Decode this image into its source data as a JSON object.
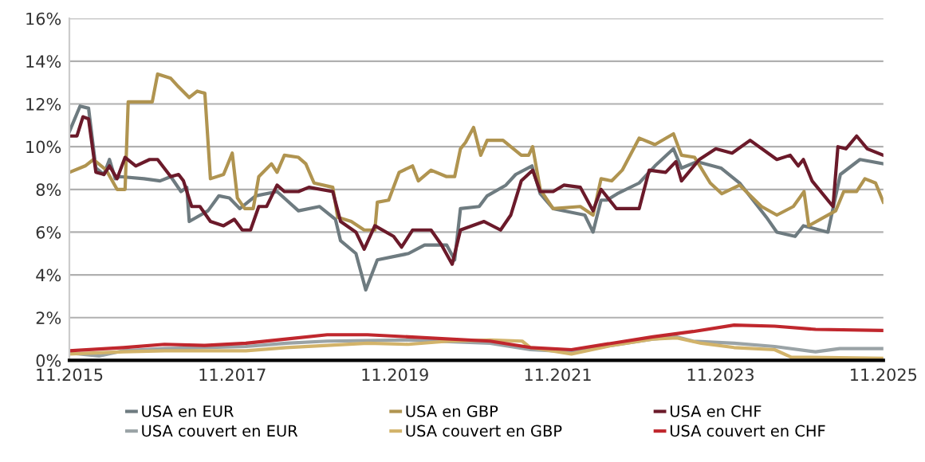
{
  "chart_data": {
    "type": "line",
    "xlim": [
      "2015-11-01",
      "2025-11-01"
    ],
    "xticks": [
      {
        "value": "2015-11-01",
        "label": "11.2015"
      },
      {
        "value": "2017-11-01",
        "label": "11.2017"
      },
      {
        "value": "2019-11-01",
        "label": "11.2019"
      },
      {
        "value": "2021-11-01",
        "label": "11.2021"
      },
      {
        "value": "2023-11-01",
        "label": "11.2023"
      },
      {
        "value": "2025-11-01",
        "label": "11.2025"
      }
    ],
    "ylim": [
      0,
      16
    ],
    "yticks": [
      {
        "value": 0,
        "label": "0%"
      },
      {
        "value": 2,
        "label": "2%"
      },
      {
        "value": 4,
        "label": "4%"
      },
      {
        "value": 6,
        "label": "6%"
      },
      {
        "value": 8,
        "label": "8%"
      },
      {
        "value": 10,
        "label": "10%"
      },
      {
        "value": 12,
        "label": "12%"
      },
      {
        "value": 14,
        "label": "14%"
      },
      {
        "value": 16,
        "label": "16%"
      }
    ],
    "grid": "y",
    "legend": "bottom",
    "marker": "none",
    "line_style": "solid",
    "series": [
      {
        "name": "USA en EUR",
        "color": "#6e7b80",
        "x": [
          "2015-11-01",
          "2015-12-19",
          "2016-01-26",
          "2016-02-28",
          "2016-04-04",
          "2016-04-29",
          "2016-05-25",
          "2016-06-16",
          "2016-10-01",
          "2016-12-12",
          "2017-01-29",
          "2017-03-16",
          "2017-04-11",
          "2017-04-22",
          "2017-07-15",
          "2017-09-02",
          "2017-10-19",
          "2017-12-05",
          "2018-02-14",
          "2018-05-21",
          "2018-08-25",
          "2018-11-28",
          "2019-02-07",
          "2019-03-02",
          "2019-05-10",
          "2019-06-23",
          "2019-08-14",
          "2020-01-01",
          "2020-03-13",
          "2020-06-20",
          "2020-07-26",
          "2020-08-21",
          "2020-11-13",
          "2020-12-19",
          "2021-03-13",
          "2021-04-26",
          "2021-07-08",
          "2021-08-14",
          "2021-10-11",
          "2022-03-02",
          "2022-04-08",
          "2022-05-14",
          "2022-06-09",
          "2022-07-26",
          "2022-11-01",
          "2023-01-11",
          "2023-04-04",
          "2023-05-10",
          "2023-07-19",
          "2023-11-03",
          "2024-01-26",
          "2024-05-25",
          "2024-07-11",
          "2024-10-01",
          "2024-11-07",
          "2025-02-25",
          "2025-04-22",
          "2025-07-19",
          "2025-11-01"
        ],
        "values": [
          10.7,
          11.9,
          11.8,
          9.0,
          8.7,
          9.4,
          8.5,
          8.6,
          8.5,
          8.4,
          8.6,
          7.9,
          8.1,
          6.5,
          7.0,
          7.7,
          7.6,
          7.1,
          7.7,
          7.9,
          7.0,
          7.2,
          6.6,
          5.6,
          5.0,
          3.3,
          4.7,
          5.0,
          5.4,
          5.4,
          4.7,
          7.1,
          7.2,
          7.7,
          8.2,
          8.7,
          9.1,
          7.8,
          7.1,
          6.8,
          6.0,
          7.5,
          7.5,
          7.8,
          8.3,
          9.1,
          9.9,
          9.0,
          9.3,
          9.0,
          8.3,
          6.7,
          6.0,
          5.8,
          6.3,
          6.0,
          8.7,
          9.4,
          9.2
        ]
      },
      {
        "name": "USA couvert en EUR",
        "color": "#9aa3a6",
        "x": [
          "2015-11-01",
          "2016-03-13",
          "2016-07-01",
          "2017-01-01",
          "2018-01-01",
          "2018-07-01",
          "2019-01-01",
          "2020-01-01",
          "2021-01-01",
          "2021-07-01",
          "2022-01-01",
          "2022-07-01",
          "2023-01-01",
          "2023-04-19",
          "2023-07-01",
          "2024-01-01",
          "2024-07-01",
          "2025-01-01",
          "2025-04-19",
          "2025-11-01"
        ],
        "values": [
          0.35,
          0.2,
          0.45,
          0.55,
          0.65,
          0.8,
          0.9,
          0.95,
          0.8,
          0.5,
          0.4,
          0.7,
          1.0,
          1.1,
          0.9,
          0.8,
          0.65,
          0.4,
          0.55,
          0.55
        ]
      },
      {
        "name": "USA en GBP",
        "color": "#b09450",
        "x": [
          "2015-11-01",
          "2016-01-11",
          "2016-02-17",
          "2016-04-15",
          "2016-06-02",
          "2016-07-08",
          "2016-07-22",
          "2016-11-07",
          "2016-12-01",
          "2017-01-29",
          "2017-03-05",
          "2017-04-22",
          "2017-05-28",
          "2017-07-01",
          "2017-07-26",
          "2017-09-23",
          "2017-11-01",
          "2017-11-24",
          "2017-12-27",
          "2018-02-03",
          "2018-02-28",
          "2018-04-26",
          "2018-05-21",
          "2018-06-23",
          "2018-08-25",
          "2018-09-27",
          "2018-11-03",
          "2019-01-26",
          "2019-02-17",
          "2019-04-19",
          "2019-06-16",
          "2019-08-03",
          "2019-08-14",
          "2019-10-04",
          "2019-11-20",
          "2020-01-19",
          "2020-02-14",
          "2020-04-11",
          "2020-06-20",
          "2020-07-26",
          "2020-08-21",
          "2020-09-13",
          "2020-10-19",
          "2020-11-20",
          "2020-12-19",
          "2021-02-28",
          "2021-05-21",
          "2021-06-23",
          "2021-07-11",
          "2021-08-14",
          "2021-10-11",
          "2022-02-10",
          "2022-04-08",
          "2022-05-14",
          "2022-07-01",
          "2022-08-17",
          "2022-11-01",
          "2023-01-11",
          "2023-04-04",
          "2023-05-10",
          "2023-07-08",
          "2023-09-16",
          "2023-11-07",
          "2024-01-26",
          "2024-05-03",
          "2024-07-11",
          "2024-09-23",
          "2024-11-10",
          "2024-12-01",
          "2025-04-01",
          "2025-05-07",
          "2025-07-04",
          "2025-08-10",
          "2025-09-27",
          "2025-11-01"
        ],
        "values": [
          8.8,
          9.1,
          9.4,
          8.9,
          8.0,
          8.0,
          12.1,
          12.1,
          13.4,
          13.2,
          12.8,
          12.3,
          12.6,
          12.5,
          8.5,
          8.7,
          9.7,
          7.6,
          7.1,
          7.1,
          8.6,
          9.2,
          8.8,
          9.6,
          9.5,
          9.2,
          8.3,
          8.1,
          6.7,
          6.5,
          6.1,
          6.1,
          7.4,
          7.5,
          8.8,
          9.1,
          8.4,
          8.9,
          8.6,
          8.6,
          9.9,
          10.2,
          10.9,
          9.6,
          10.3,
          10.3,
          9.6,
          9.6,
          10.0,
          8.0,
          7.1,
          7.2,
          6.8,
          8.5,
          8.4,
          8.9,
          10.4,
          10.1,
          10.6,
          9.6,
          9.5,
          8.3,
          7.8,
          8.2,
          7.2,
          6.8,
          7.2,
          7.9,
          6.3,
          7.0,
          7.9,
          7.9,
          8.5,
          8.3,
          7.4
        ]
      },
      {
        "name": "USA couvert en GBP",
        "color": "#d2b36a",
        "x": [
          "2015-11-01",
          "2016-07-01",
          "2017-01-01",
          "2018-01-01",
          "2018-07-01",
          "2019-01-01",
          "2019-07-01",
          "2020-01-01",
          "2020-07-01",
          "2021-01-01",
          "2021-05-25",
          "2021-07-01",
          "2022-01-01",
          "2022-07-01",
          "2023-01-01",
          "2023-04-19",
          "2023-08-07",
          "2024-01-01",
          "2024-07-01",
          "2024-09-13",
          "2025-11-01"
        ],
        "values": [
          0.3,
          0.4,
          0.45,
          0.45,
          0.6,
          0.7,
          0.8,
          0.75,
          0.9,
          0.95,
          0.9,
          0.6,
          0.3,
          0.7,
          1.0,
          1.05,
          0.8,
          0.6,
          0.5,
          0.15,
          0.1
        ]
      },
      {
        "name": "USA en CHF",
        "color": "#6b1a2a",
        "x": [
          "2015-11-01",
          "2015-12-05",
          "2016-01-01",
          "2016-01-26",
          "2016-02-28",
          "2016-04-04",
          "2016-04-29",
          "2016-06-02",
          "2016-07-08",
          "2016-08-25",
          "2016-10-26",
          "2016-12-01",
          "2017-01-29",
          "2017-03-05",
          "2017-03-27",
          "2017-05-03",
          "2017-06-09",
          "2017-07-26",
          "2017-09-23",
          "2017-11-10",
          "2017-12-16",
          "2018-01-22",
          "2018-02-28",
          "2018-04-04",
          "2018-05-21",
          "2018-06-23",
          "2018-08-25",
          "2018-10-11",
          "2019-01-26",
          "2019-03-02",
          "2019-05-10",
          "2019-06-16",
          "2019-08-03",
          "2019-10-26",
          "2019-12-01",
          "2020-01-19",
          "2020-04-11",
          "2020-05-28",
          "2020-07-15",
          "2020-08-21",
          "2020-12-05",
          "2021-02-17",
          "2021-04-04",
          "2021-05-21",
          "2021-07-11",
          "2021-08-14",
          "2021-10-11",
          "2021-11-28",
          "2022-02-10",
          "2022-04-08",
          "2022-05-14",
          "2022-07-22",
          "2022-11-01",
          "2022-12-16",
          "2023-02-28",
          "2023-04-15",
          "2023-05-10",
          "2023-07-29",
          "2023-10-11",
          "2023-12-23",
          "2024-03-13",
          "2024-07-11",
          "2024-09-09",
          "2024-10-15",
          "2024-11-07",
          "2024-12-16",
          "2025-03-20",
          "2025-04-11",
          "2025-05-17",
          "2025-07-04",
          "2025-08-21",
          "2025-11-01"
        ],
        "values": [
          10.5,
          10.5,
          11.4,
          11.3,
          8.8,
          8.7,
          9.1,
          8.5,
          9.5,
          9.1,
          9.4,
          9.4,
          8.6,
          8.7,
          8.4,
          7.2,
          7.2,
          6.5,
          6.3,
          6.6,
          6.1,
          6.1,
          7.2,
          7.2,
          8.2,
          7.9,
          7.9,
          8.1,
          7.9,
          6.5,
          6.0,
          5.2,
          6.3,
          5.8,
          5.3,
          6.1,
          6.1,
          5.4,
          4.5,
          6.1,
          6.5,
          6.1,
          6.8,
          8.4,
          8.9,
          7.9,
          7.9,
          8.2,
          8.1,
          7.0,
          8.0,
          7.1,
          7.1,
          8.9,
          8.8,
          9.3,
          8.4,
          9.4,
          9.9,
          9.7,
          10.3,
          9.4,
          9.6,
          9.1,
          9.4,
          8.4,
          7.2,
          10.0,
          9.9,
          10.5,
          9.9,
          9.6
        ]
      },
      {
        "name": "USA couvert en CHF",
        "color": "#c0272d",
        "x": [
          "2015-11-01",
          "2016-07-01",
          "2017-01-01",
          "2017-07-01",
          "2018-01-01",
          "2018-07-01",
          "2019-01-01",
          "2019-07-01",
          "2020-01-01",
          "2021-01-01",
          "2021-07-01",
          "2022-01-01",
          "2022-07-01",
          "2023-01-01",
          "2023-07-01",
          "2024-01-01",
          "2024-07-01",
          "2025-01-01",
          "2025-11-01"
        ],
        "values": [
          0.45,
          0.6,
          0.75,
          0.7,
          0.8,
          1.0,
          1.2,
          1.2,
          1.1,
          0.9,
          0.6,
          0.5,
          0.8,
          1.1,
          1.35,
          1.65,
          1.6,
          1.45,
          1.4
        ]
      }
    ]
  }
}
